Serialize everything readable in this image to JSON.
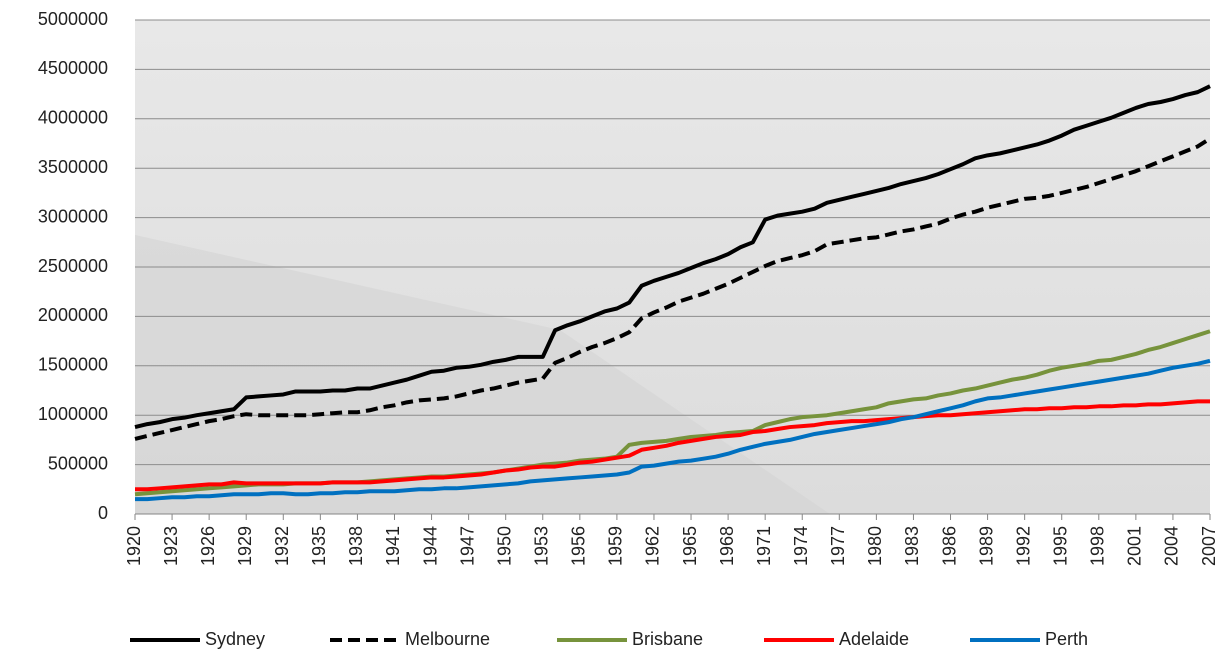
{
  "chart_data": {
    "type": "line",
    "x": [
      1920,
      1921,
      1922,
      1923,
      1924,
      1925,
      1926,
      1927,
      1928,
      1929,
      1930,
      1931,
      1932,
      1933,
      1934,
      1935,
      1936,
      1937,
      1938,
      1939,
      1940,
      1941,
      1942,
      1943,
      1944,
      1945,
      1946,
      1947,
      1948,
      1949,
      1950,
      1951,
      1952,
      1953,
      1954,
      1955,
      1956,
      1957,
      1958,
      1959,
      1960,
      1961,
      1962,
      1963,
      1964,
      1965,
      1966,
      1967,
      1968,
      1969,
      1970,
      1971,
      1972,
      1973,
      1974,
      1975,
      1976,
      1977,
      1978,
      1979,
      1980,
      1981,
      1982,
      1983,
      1984,
      1985,
      1986,
      1987,
      1988,
      1989,
      1990,
      1991,
      1992,
      1993,
      1994,
      1995,
      1996,
      1997,
      1998,
      1999,
      2000,
      2001,
      2002,
      2003,
      2004,
      2005,
      2006,
      2007
    ],
    "xlim": [
      1920,
      2007
    ],
    "xticks": [
      1920,
      1923,
      1926,
      1929,
      1932,
      1935,
      1938,
      1941,
      1944,
      1947,
      1950,
      1953,
      1956,
      1959,
      1962,
      1965,
      1968,
      1971,
      1974,
      1977,
      1980,
      1983,
      1986,
      1989,
      1992,
      1995,
      1998,
      2001,
      2004,
      2007
    ],
    "ylim": [
      0,
      5000000
    ],
    "yticks": [
      0,
      500000,
      1000000,
      1500000,
      2000000,
      2500000,
      3000000,
      3500000,
      4000000,
      4500000,
      5000000
    ],
    "grid": true,
    "legend": "bottom",
    "series": [
      {
        "name": "Sydney",
        "color": "#000000",
        "dash": "solid",
        "values": [
          880000,
          910000,
          930000,
          960000,
          975000,
          1000000,
          1020000,
          1040000,
          1060000,
          1180000,
          1190000,
          1200000,
          1210000,
          1240000,
          1240000,
          1240000,
          1250000,
          1250000,
          1270000,
          1270000,
          1300000,
          1330000,
          1360000,
          1400000,
          1440000,
          1450000,
          1480000,
          1490000,
          1510000,
          1540000,
          1560000,
          1590000,
          1590000,
          1590000,
          1860000,
          1910000,
          1950000,
          2000000,
          2050000,
          2080000,
          2140000,
          2310000,
          2360000,
          2400000,
          2440000,
          2490000,
          2540000,
          2580000,
          2630000,
          2700000,
          2750000,
          2980000,
          3020000,
          3040000,
          3060000,
          3090000,
          3150000,
          3180000,
          3210000,
          3240000,
          3270000,
          3300000,
          3340000,
          3370000,
          3400000,
          3440000,
          3490000,
          3540000,
          3600000,
          3630000,
          3650000,
          3680000,
          3710000,
          3740000,
          3780000,
          3830000,
          3890000,
          3930000,
          3970000,
          4010000,
          4060000,
          4110000,
          4150000,
          4170000,
          4200000,
          4240000,
          4270000,
          4330000
        ]
      },
      {
        "name": "Melbourne",
        "color": "#000000",
        "dash": "dashed",
        "values": [
          760000,
          790000,
          820000,
          850000,
          880000,
          910000,
          940000,
          960000,
          990000,
          1010000,
          1000000,
          1000000,
          1000000,
          1000000,
          1000000,
          1010000,
          1020000,
          1030000,
          1030000,
          1050000,
          1080000,
          1100000,
          1130000,
          1150000,
          1160000,
          1170000,
          1190000,
          1220000,
          1250000,
          1270000,
          1300000,
          1330000,
          1350000,
          1370000,
          1530000,
          1580000,
          1640000,
          1690000,
          1730000,
          1780000,
          1840000,
          1980000,
          2040000,
          2090000,
          2150000,
          2190000,
          2230000,
          2280000,
          2330000,
          2390000,
          2450000,
          2510000,
          2560000,
          2590000,
          2620000,
          2660000,
          2730000,
          2750000,
          2770000,
          2790000,
          2800000,
          2830000,
          2860000,
          2880000,
          2910000,
          2940000,
          2990000,
          3030000,
          3060000,
          3100000,
          3130000,
          3160000,
          3190000,
          3200000,
          3220000,
          3250000,
          3280000,
          3310000,
          3350000,
          3390000,
          3430000,
          3470000,
          3520000,
          3570000,
          3620000,
          3670000,
          3720000,
          3800000
        ]
      },
      {
        "name": "Brisbane",
        "color": "#77933c",
        "dash": "solid",
        "values": [
          200000,
          210000,
          220000,
          230000,
          240000,
          250000,
          260000,
          270000,
          280000,
          290000,
          300000,
          300000,
          300000,
          310000,
          310000,
          310000,
          320000,
          320000,
          320000,
          330000,
          340000,
          350000,
          360000,
          370000,
          380000,
          380000,
          390000,
          400000,
          410000,
          420000,
          440000,
          460000,
          480000,
          500000,
          510000,
          520000,
          540000,
          550000,
          560000,
          580000,
          700000,
          720000,
          730000,
          740000,
          760000,
          780000,
          790000,
          800000,
          820000,
          830000,
          840000,
          900000,
          930000,
          960000,
          980000,
          990000,
          1000000,
          1020000,
          1040000,
          1060000,
          1080000,
          1120000,
          1140000,
          1160000,
          1170000,
          1200000,
          1220000,
          1250000,
          1270000,
          1300000,
          1330000,
          1360000,
          1380000,
          1410000,
          1450000,
          1480000,
          1500000,
          1520000,
          1550000,
          1560000,
          1590000,
          1620000,
          1660000,
          1690000,
          1730000,
          1770000,
          1810000,
          1850000
        ]
      },
      {
        "name": "Adelaide",
        "color": "#ff0000",
        "dash": "solid",
        "values": [
          250000,
          250000,
          260000,
          270000,
          280000,
          290000,
          300000,
          300000,
          320000,
          310000,
          310000,
          310000,
          310000,
          310000,
          310000,
          310000,
          320000,
          320000,
          320000,
          320000,
          330000,
          340000,
          350000,
          360000,
          370000,
          370000,
          380000,
          390000,
          400000,
          420000,
          440000,
          450000,
          470000,
          480000,
          480000,
          500000,
          520000,
          530000,
          550000,
          570000,
          590000,
          650000,
          670000,
          690000,
          720000,
          740000,
          760000,
          780000,
          790000,
          800000,
          830000,
          840000,
          860000,
          880000,
          890000,
          900000,
          920000,
          930000,
          940000,
          940000,
          950000,
          960000,
          970000,
          980000,
          990000,
          1000000,
          1000000,
          1010000,
          1020000,
          1030000,
          1040000,
          1050000,
          1060000,
          1060000,
          1070000,
          1070000,
          1080000,
          1080000,
          1090000,
          1090000,
          1100000,
          1100000,
          1110000,
          1110000,
          1120000,
          1130000,
          1140000,
          1140000
        ]
      },
      {
        "name": "Perth",
        "color": "#0070c0",
        "dash": "solid",
        "values": [
          150000,
          150000,
          160000,
          170000,
          170000,
          180000,
          180000,
          190000,
          200000,
          200000,
          200000,
          210000,
          210000,
          200000,
          200000,
          210000,
          210000,
          220000,
          220000,
          230000,
          230000,
          230000,
          240000,
          250000,
          250000,
          260000,
          260000,
          270000,
          280000,
          290000,
          300000,
          310000,
          330000,
          340000,
          350000,
          360000,
          370000,
          380000,
          390000,
          400000,
          420000,
          480000,
          490000,
          510000,
          530000,
          540000,
          560000,
          580000,
          610000,
          650000,
          680000,
          710000,
          730000,
          750000,
          780000,
          810000,
          830000,
          850000,
          870000,
          890000,
          910000,
          930000,
          960000,
          980000,
          1010000,
          1040000,
          1070000,
          1100000,
          1140000,
          1170000,
          1180000,
          1200000,
          1220000,
          1240000,
          1260000,
          1280000,
          1300000,
          1320000,
          1340000,
          1360000,
          1380000,
          1400000,
          1420000,
          1450000,
          1480000,
          1500000,
          1520000,
          1550000
        ]
      }
    ]
  }
}
